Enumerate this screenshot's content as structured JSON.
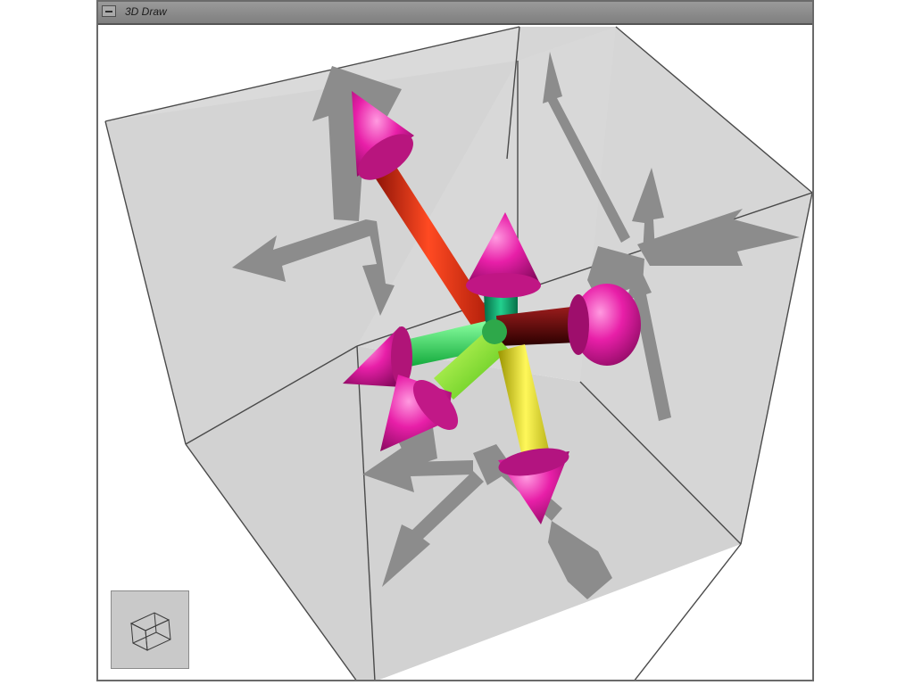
{
  "window": {
    "title": "3D Draw"
  },
  "icons": {
    "window_menu": "window-menu-icon",
    "orientation_cube": "orientation-cube-icon"
  },
  "colors": {
    "face": "#d7d7d7",
    "edge": "#4a4a4a",
    "shadow": "#8c8c8c",
    "red_shaft": "#e52a12",
    "green_shaft": "#31e24c",
    "lime_shaft": "#8ff02a",
    "yellow_shaft": "#e8e21a",
    "teal_shaft": "#0e9a6a",
    "maroon_shaft": "#6a0a0a",
    "cone": "#e01fa0"
  }
}
